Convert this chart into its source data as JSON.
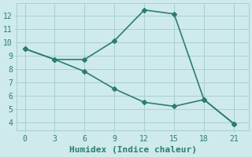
{
  "line1_x": [
    0,
    3,
    6,
    9,
    12,
    15,
    18,
    21
  ],
  "line1_y": [
    9.5,
    8.7,
    8.7,
    10.1,
    12.4,
    12.1,
    5.7,
    3.9
  ],
  "line2_x": [
    0,
    3,
    6,
    9,
    12,
    15,
    18,
    21
  ],
  "line2_y": [
    9.5,
    8.7,
    7.8,
    6.5,
    5.5,
    5.2,
    5.7,
    3.9
  ],
  "line_color": "#2d7d6e",
  "bg_color": "#ceeaea",
  "grid_color": "#aacfcf",
  "xlabel": "Humidex (Indice chaleur)",
  "xlabel_fontsize": 8,
  "xticks": [
    0,
    3,
    6,
    9,
    12,
    15,
    18,
    21
  ],
  "yticks": [
    4,
    5,
    6,
    7,
    8,
    9,
    10,
    11,
    12
  ],
  "xlim": [
    -0.8,
    22.5
  ],
  "ylim": [
    3.4,
    12.9
  ],
  "marker": "D",
  "marker_size": 3,
  "linewidth": 1.2
}
